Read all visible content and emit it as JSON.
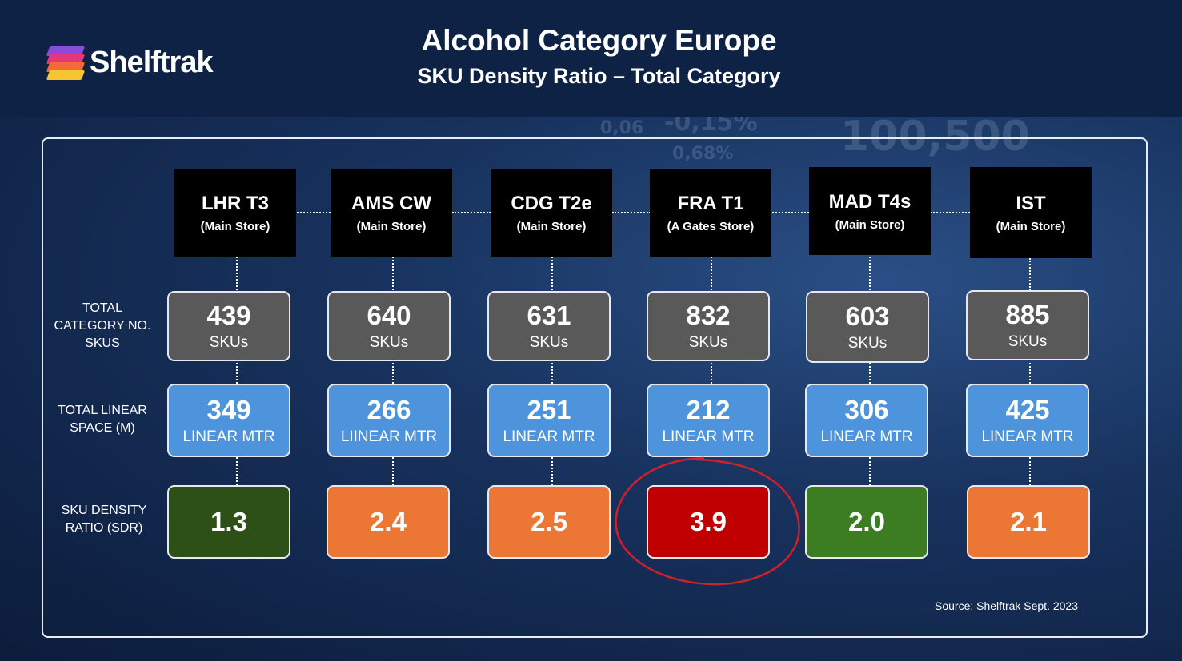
{
  "header": {
    "brand": "Shelftrak",
    "title": "Alcohol Category Europe",
    "subtitle": "SKU Density Ratio – Total Category"
  },
  "background_numbers": [
    "-0,15%",
    "100,500",
    "0,06",
    "0,68%"
  ],
  "row_labels": {
    "skus": "TOTAL CATEGORY NO. SKUS",
    "linear": "TOTAL LINEAR SPACE (M)",
    "sdr": "SKU DENSITY RATIO (SDR)"
  },
  "stores": [
    {
      "code": "LHR T3",
      "store": "(Main Store)",
      "skus": "439",
      "skus_unit": "SKUs",
      "linear": "349",
      "linear_unit": "LINEAR MTR",
      "sdr": "1.3",
      "sdr_color": "#2d5016"
    },
    {
      "code": "AMS CW",
      "store": "(Main Store)",
      "skus": "640",
      "skus_unit": "SKUs",
      "linear": "266",
      "linear_unit": "LIINEAR MTR",
      "sdr": "2.4",
      "sdr_color": "#ec7634"
    },
    {
      "code": "CDG T2e",
      "store": "(Main Store)",
      "skus": "631",
      "skus_unit": "SKUs",
      "linear": "251",
      "linear_unit": "LINEAR MTR",
      "sdr": "2.5",
      "sdr_color": "#ec7634"
    },
    {
      "code": "FRA T1",
      "store": "(A Gates Store)",
      "skus": "832",
      "skus_unit": "SKUs",
      "linear": "212",
      "linear_unit": "LINEAR MTR",
      "sdr": "3.9",
      "sdr_color": "#c00000"
    },
    {
      "code": "MAD T4s",
      "store": "(Main Store)",
      "skus": "603",
      "skus_unit": "SKUs",
      "linear": "306",
      "linear_unit": "LINEAR MTR",
      "sdr": "2.0",
      "sdr_color": "#3c7d22"
    },
    {
      "code": "IST",
      "store": "(Main Store)",
      "skus": "885",
      "skus_unit": "SKUs",
      "linear": "425",
      "linear_unit": "LINEAR MTR",
      "sdr": "2.1",
      "sdr_color": "#ec7634"
    }
  ],
  "highlight_color": "#d0202a",
  "source": "Source: Shelftrak Sept. 2023"
}
